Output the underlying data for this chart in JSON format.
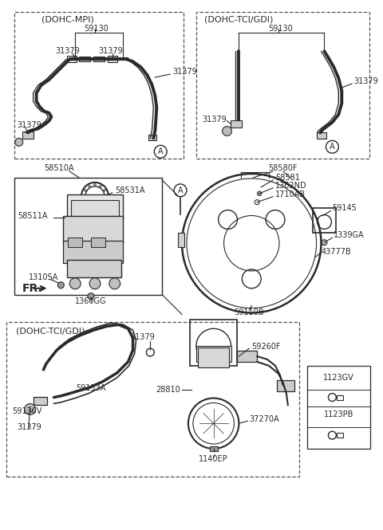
{
  "bg_color": "#ffffff",
  "lc": "#2a2a2a",
  "dc": "#555555",
  "fs": 7.0,
  "fs_label": 8.0,
  "top_left_label": "(DOHC-MPI)",
  "top_right_label": "(DOHC-TCI/GDI)",
  "bottom_label": "(DOHC-TCI/GDI)",
  "parts": {
    "59130": "59130",
    "31379": "31379",
    "58510A": "58510A",
    "58531A": "58531A",
    "58511A": "58511A",
    "58580F": "58580F",
    "58581": "58581",
    "1362ND": "1362ND",
    "1710AB": "1710AB",
    "59145": "59145",
    "1339GA": "1339GA",
    "43777B": "43777B",
    "1310SA": "1310SA",
    "1360GG": "1360GG",
    "59110B": "59110B",
    "59260F": "59260F",
    "59130V": "59130V",
    "59133A": "59133A",
    "28810": "28810",
    "37270A": "37270A",
    "1140EP": "1140EP",
    "1123GV": "1123GV",
    "1123PB": "1123PB"
  }
}
